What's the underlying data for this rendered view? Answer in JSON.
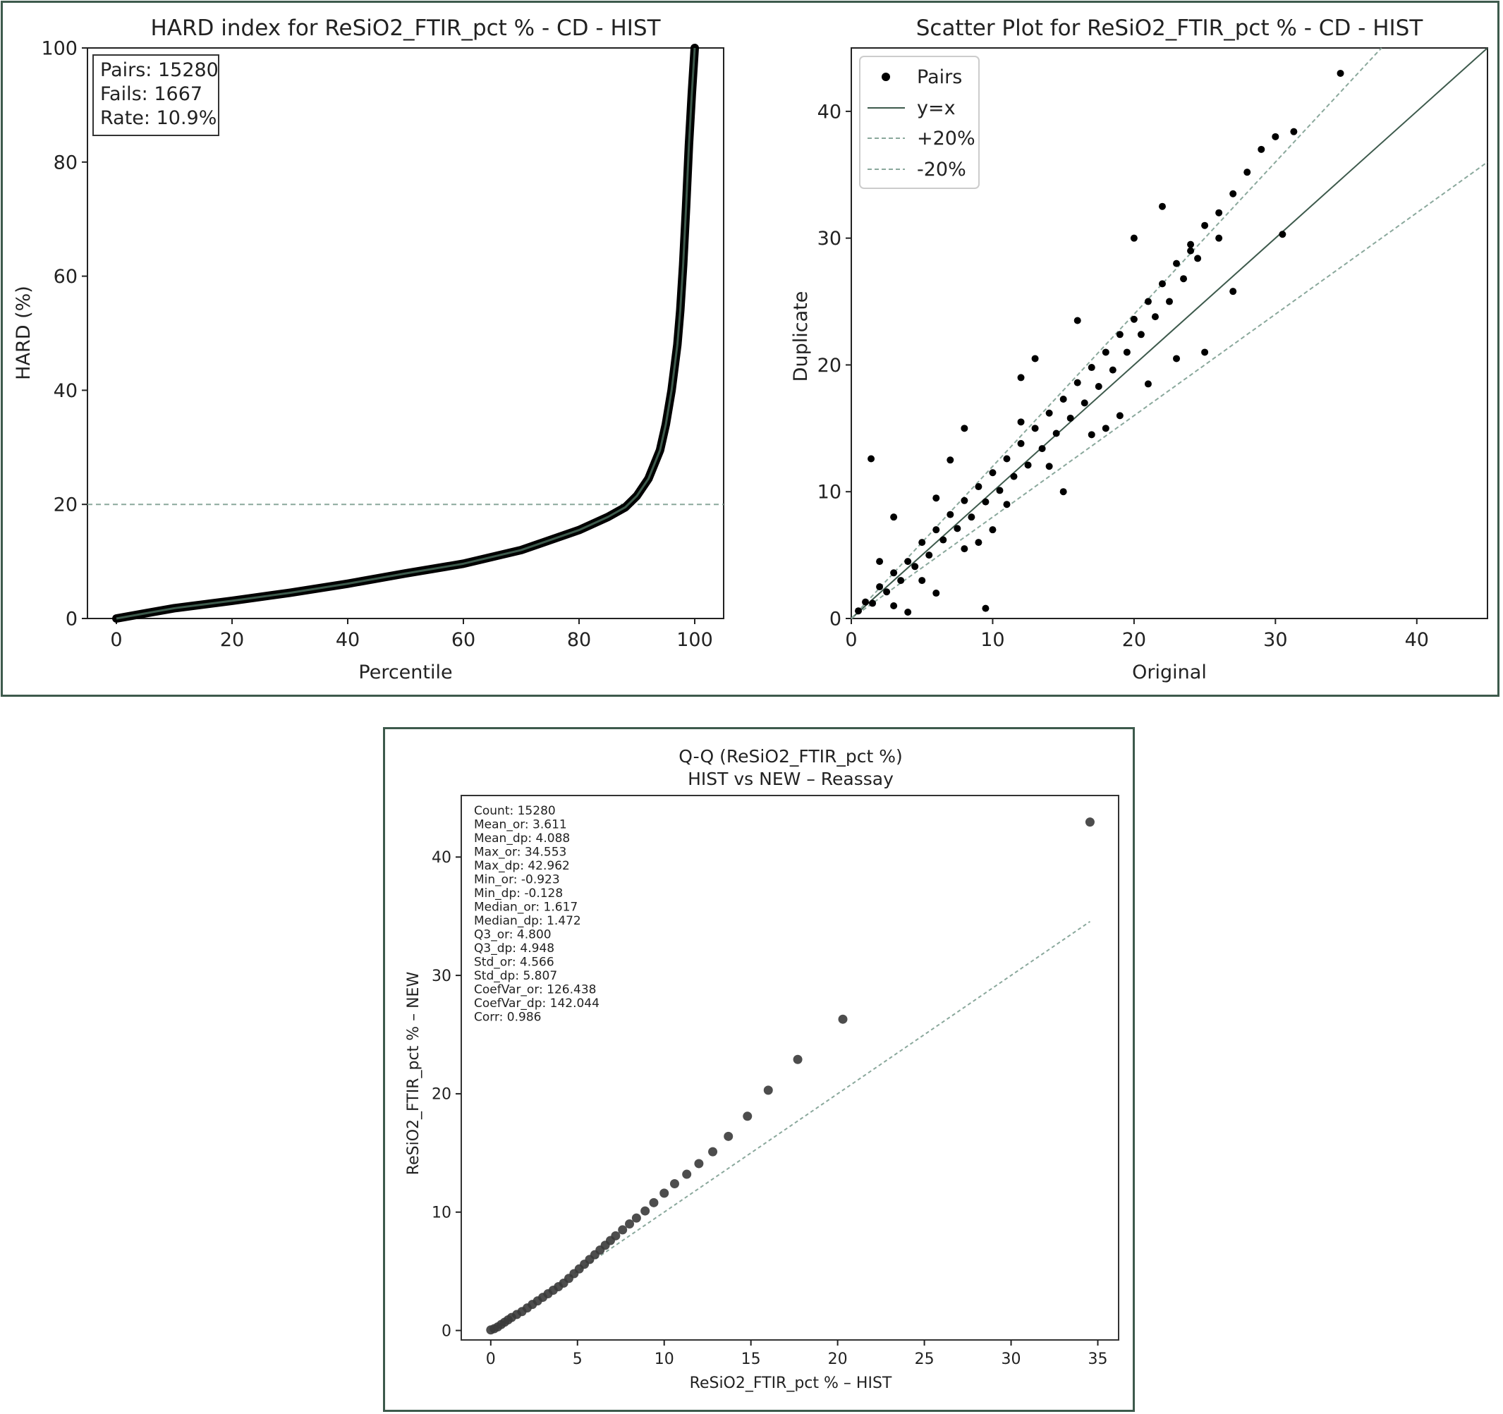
{
  "hard_chart": {
    "type": "line",
    "title": "HARD index for ReSiO2_FTIR_pct % - CD - HIST",
    "xlabel": "Percentile",
    "ylabel": "HARD (%)",
    "xlim": [
      -5,
      105
    ],
    "ylim": [
      0,
      100
    ],
    "xticks": [
      0,
      20,
      40,
      60,
      80,
      100
    ],
    "yticks": [
      0,
      20,
      40,
      60,
      80,
      100
    ],
    "threshold": 20,
    "stats_box": [
      "Pairs: 15280",
      "Fails: 1667",
      "Rate: 10.9%"
    ],
    "x": [
      0,
      5,
      10,
      20,
      30,
      40,
      50,
      60,
      70,
      80,
      85,
      88,
      90,
      92,
      94,
      95,
      96,
      97,
      97.5,
      98,
      98.5,
      99,
      99.5,
      100
    ],
    "y": [
      0,
      0.9,
      1.8,
      3.1,
      4.5,
      6.1,
      7.9,
      9.6,
      12.0,
      15.5,
      17.8,
      19.5,
      21.5,
      24.5,
      29.5,
      34.0,
      40.0,
      48.0,
      54.0,
      62.0,
      72.0,
      83.0,
      92.0,
      100.0
    ]
  },
  "scatter_chart": {
    "type": "scatter",
    "title": "Scatter Plot for ReSiO2_FTIR_pct % - CD - HIST",
    "xlabel": "Original",
    "ylabel": "Duplicate",
    "xlim": [
      0,
      45
    ],
    "ylim": [
      0,
      45
    ],
    "xticks": [
      0,
      10,
      20,
      30,
      40
    ],
    "yticks": [
      0,
      10,
      20,
      30,
      40
    ],
    "legend": [
      "Pairs",
      "y=x",
      "+20%",
      "-20%"
    ],
    "legend_position": "top-left",
    "points": [
      [
        0.5,
        0.6
      ],
      [
        1,
        1.3
      ],
      [
        1.5,
        1.2
      ],
      [
        2,
        2.5
      ],
      [
        2.5,
        2.1
      ],
      [
        3,
        3.6
      ],
      [
        3.5,
        3.0
      ],
      [
        4,
        4.5
      ],
      [
        4.5,
        4.1
      ],
      [
        5,
        6.0
      ],
      [
        5.5,
        5.0
      ],
      [
        6,
        7.0
      ],
      [
        6.5,
        6.2
      ],
      [
        7,
        8.2
      ],
      [
        7.5,
        7.1
      ],
      [
        8,
        9.3
      ],
      [
        8.5,
        8.0
      ],
      [
        9,
        10.4
      ],
      [
        9.5,
        9.2
      ],
      [
        10,
        11.5
      ],
      [
        10.5,
        10.1
      ],
      [
        11,
        12.6
      ],
      [
        11.5,
        11.2
      ],
      [
        12,
        13.8
      ],
      [
        12.5,
        12.1
      ],
      [
        13,
        15.0
      ],
      [
        13.5,
        13.4
      ],
      [
        14,
        16.2
      ],
      [
        14.5,
        14.6
      ],
      [
        15,
        17.3
      ],
      [
        15.5,
        15.8
      ],
      [
        16,
        18.6
      ],
      [
        16.5,
        17.0
      ],
      [
        17,
        19.8
      ],
      [
        17.5,
        18.3
      ],
      [
        18,
        21.0
      ],
      [
        18.5,
        19.6
      ],
      [
        19,
        22.4
      ],
      [
        19.5,
        21.0
      ],
      [
        20,
        23.6
      ],
      [
        20.5,
        22.4
      ],
      [
        21,
        25.0
      ],
      [
        21.5,
        23.8
      ],
      [
        22,
        26.4
      ],
      [
        22.5,
        25.0
      ],
      [
        23,
        28.0
      ],
      [
        23.5,
        26.8
      ],
      [
        24,
        29.5
      ],
      [
        24.5,
        28.4
      ],
      [
        25,
        31.0
      ],
      [
        26,
        30.0
      ],
      [
        27,
        33.5
      ],
      [
        28,
        35.2
      ],
      [
        29,
        37.0
      ],
      [
        30,
        38.0
      ],
      [
        31.3,
        38.4
      ],
      [
        34.6,
        43.0
      ],
      [
        1.4,
        12.6
      ],
      [
        9.5,
        0.8
      ],
      [
        15,
        10.0
      ],
      [
        7,
        12.5
      ],
      [
        3,
        8.0
      ],
      [
        8,
        15.0
      ],
      [
        12,
        19.0
      ],
      [
        16,
        23.5
      ],
      [
        20,
        30.0
      ],
      [
        22,
        32.5
      ],
      [
        27,
        25.8
      ],
      [
        30.5,
        30.3
      ],
      [
        25,
        21.0
      ],
      [
        6,
        2.0
      ],
      [
        4,
        0.5
      ],
      [
        2,
        4.5
      ],
      [
        13,
        20.5
      ],
      [
        11,
        9.0
      ],
      [
        18,
        15.0
      ],
      [
        10,
        7.0
      ],
      [
        14,
        12.0
      ],
      [
        5,
        3.0
      ],
      [
        9,
        6.0
      ],
      [
        17,
        14.5
      ],
      [
        21,
        18.5
      ],
      [
        23,
        20.5
      ],
      [
        19,
        16.0
      ],
      [
        24,
        29.0
      ],
      [
        26,
        32.0
      ],
      [
        12,
        15.5
      ],
      [
        8,
        5.5
      ],
      [
        6,
        9.5
      ],
      [
        3,
        1.0
      ]
    ],
    "point_radius": 5,
    "colors": {
      "points": "#000000",
      "identity": "#3d5a4c",
      "band": "#8aa89c"
    }
  },
  "qq_chart": {
    "type": "scatter",
    "title_line1": "Q-Q (ReSiO2_FTIR_pct %)",
    "title_line2": "HIST vs NEW – Reassay",
    "xlabel": "ReSiO2_FTIR_pct % – HIST",
    "ylabel": "ReSiO2_FTIR_pct % – NEW",
    "xlim": [
      -1.7,
      36.2
    ],
    "ylim": [
      -0.8,
      45.2
    ],
    "xticks": [
      0,
      5,
      10,
      15,
      20,
      25,
      30,
      35
    ],
    "yticks": [
      0,
      10,
      20,
      30,
      40
    ],
    "stats": [
      "Count: 15280",
      "Mean_or: 3.611",
      "Mean_dp: 4.088",
      "Max_or: 34.553",
      "Max_dp: 42.962",
      "Min_or: -0.923",
      "Min_dp: -0.128",
      "Median_or: 1.617",
      "Median_dp: 1.472",
      "Q3_or: 4.800",
      "Q3_dp: 4.948",
      "Std_or: 4.566",
      "Std_dp: 5.807",
      "CoefVar_or: 126.438",
      "CoefVar_dp: 142.044",
      "Corr: 0.986"
    ],
    "ref_line": [
      [
        0,
        0
      ],
      [
        34.553,
        34.553
      ]
    ],
    "points": [
      [
        0.0,
        0.05
      ],
      [
        0.2,
        0.15
      ],
      [
        0.4,
        0.3
      ],
      [
        0.6,
        0.5
      ],
      [
        0.8,
        0.7
      ],
      [
        1.0,
        0.9
      ],
      [
        1.2,
        1.1
      ],
      [
        1.5,
        1.35
      ],
      [
        1.8,
        1.6
      ],
      [
        2.1,
        1.9
      ],
      [
        2.4,
        2.2
      ],
      [
        2.7,
        2.5
      ],
      [
        3.0,
        2.8
      ],
      [
        3.3,
        3.1
      ],
      [
        3.6,
        3.4
      ],
      [
        3.9,
        3.7
      ],
      [
        4.2,
        4.0
      ],
      [
        4.5,
        4.4
      ],
      [
        4.8,
        4.8
      ],
      [
        5.1,
        5.2
      ],
      [
        5.4,
        5.6
      ],
      [
        5.7,
        6.0
      ],
      [
        6.0,
        6.4
      ],
      [
        6.3,
        6.8
      ],
      [
        6.6,
        7.2
      ],
      [
        6.9,
        7.6
      ],
      [
        7.2,
        8.0
      ],
      [
        7.6,
        8.5
      ],
      [
        8.0,
        9.0
      ],
      [
        8.4,
        9.5
      ],
      [
        8.9,
        10.1
      ],
      [
        9.4,
        10.8
      ],
      [
        10.0,
        11.6
      ],
      [
        10.6,
        12.4
      ],
      [
        11.3,
        13.2
      ],
      [
        12.0,
        14.1
      ],
      [
        12.8,
        15.1
      ],
      [
        13.7,
        16.4
      ],
      [
        14.8,
        18.1
      ],
      [
        16.0,
        20.3
      ],
      [
        17.7,
        22.9
      ],
      [
        20.3,
        26.3
      ],
      [
        34.55,
        42.96
      ]
    ],
    "colors": {
      "points": "#3a3a3a",
      "ref": "#8aa89c"
    }
  }
}
